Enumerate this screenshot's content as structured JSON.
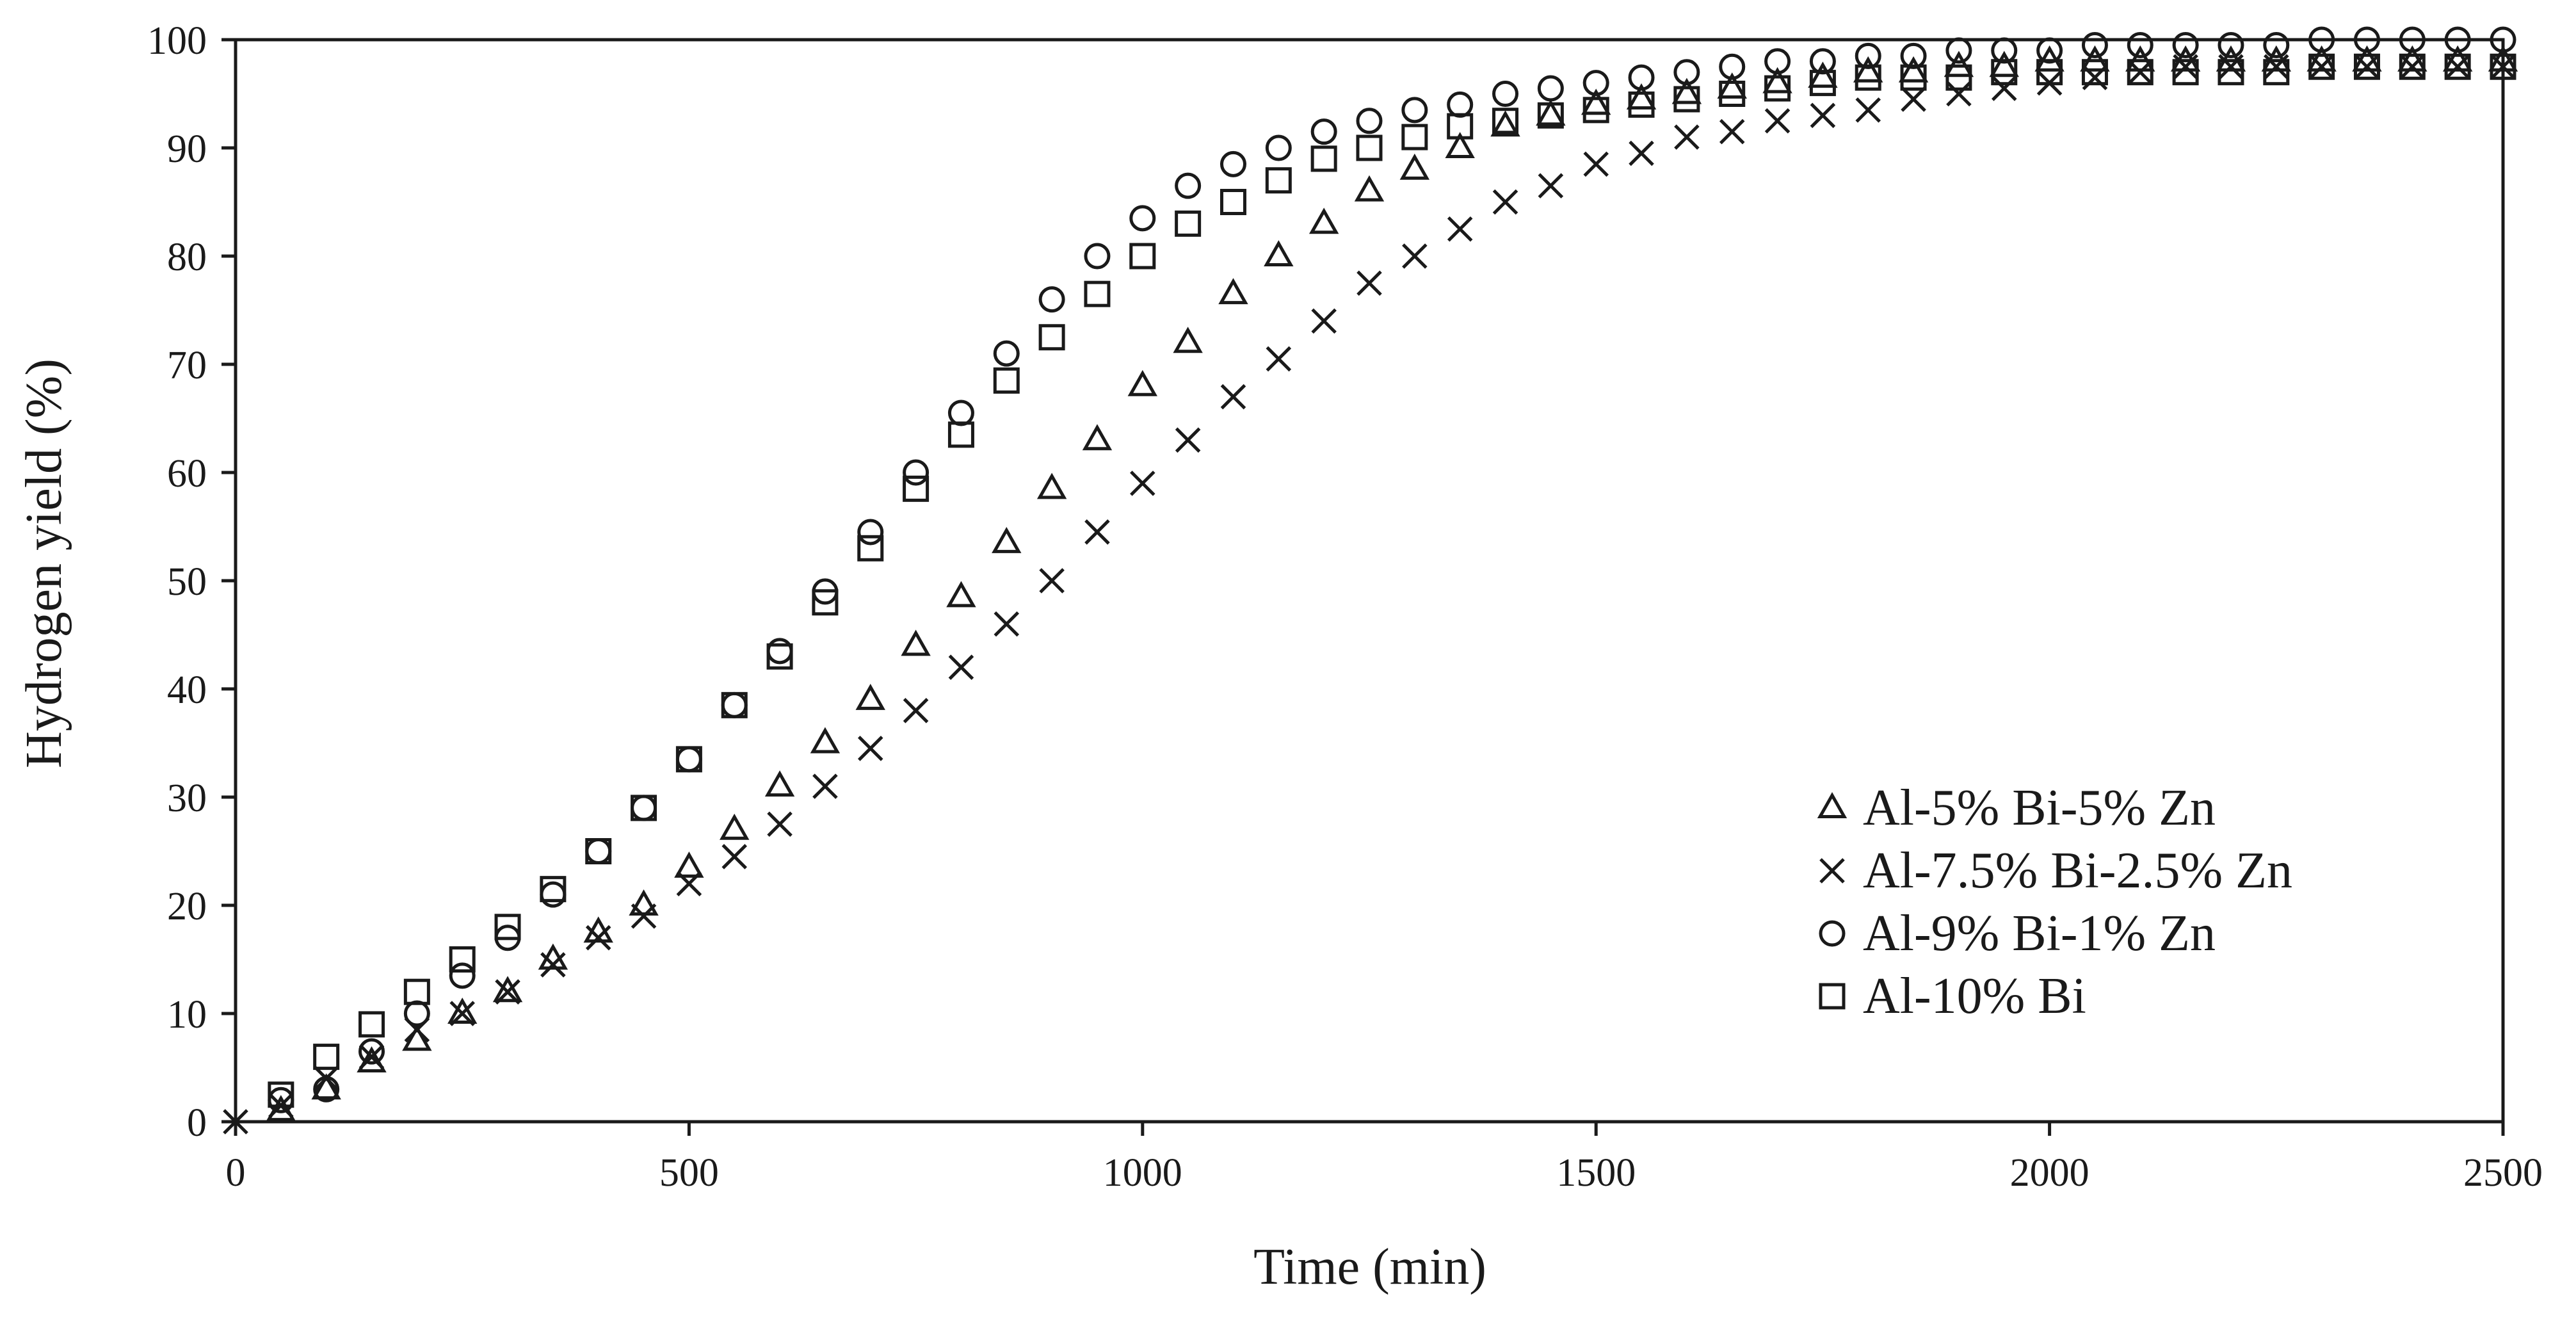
{
  "chart_data": {
    "type": "scatter",
    "title": "",
    "xlabel": "Time (min)",
    "ylabel": "Hydrogen yield (%)",
    "xlim": [
      0,
      2500
    ],
    "ylim": [
      0,
      100
    ],
    "xticks": [
      0,
      500,
      1000,
      1500,
      2000,
      2500
    ],
    "yticks": [
      0,
      10,
      20,
      30,
      40,
      50,
      60,
      70,
      80,
      90,
      100
    ],
    "grid": false,
    "legend_position": "bottom-right",
    "series": [
      {
        "name": "Al-5% Bi-5% Zn",
        "marker": "triangle",
        "x": [
          50,
          100,
          150,
          200,
          250,
          300,
          350,
          400,
          450,
          500,
          550,
          600,
          650,
          700,
          750,
          800,
          850,
          900,
          950,
          1000,
          1050,
          1100,
          1150,
          1200,
          1250,
          1300,
          1350,
          1400,
          1450,
          1500,
          1550,
          1600,
          1650,
          1700,
          1750,
          1800,
          1850,
          1900,
          1950,
          2000,
          2050,
          2100,
          2150,
          2200,
          2250,
          2300,
          2350,
          2400,
          2450,
          2500
        ],
        "y": [
          1,
          3,
          5.5,
          7.5,
          10,
          12,
          15,
          17.5,
          20,
          23.5,
          27,
          31,
          35,
          39,
          44,
          48.5,
          53.5,
          58.5,
          63,
          68,
          72,
          76.5,
          80,
          83,
          86,
          88,
          90,
          92,
          93,
          94,
          94.5,
          95,
          95.5,
          96,
          96.5,
          97,
          97,
          97.5,
          97.5,
          98,
          98,
          98,
          98,
          98,
          98,
          98,
          98,
          98,
          98,
          98
        ]
      },
      {
        "name": "Al-7.5% Bi-2.5% Zn",
        "marker": "cross",
        "x": [
          50,
          100,
          150,
          200,
          250,
          300,
          350,
          400,
          450,
          500,
          550,
          600,
          650,
          700,
          750,
          800,
          850,
          900,
          950,
          1000,
          1050,
          1100,
          1150,
          1200,
          1250,
          1300,
          1350,
          1400,
          1450,
          1500,
          1550,
          1600,
          1650,
          1700,
          1750,
          1800,
          1850,
          1900,
          1950,
          2000,
          2050,
          2100,
          2150,
          2200,
          2250,
          2300,
          2350,
          2400,
          2450,
          2500
        ],
        "y": [
          1.5,
          4,
          6,
          8.5,
          10,
          12,
          14.5,
          17,
          19,
          22,
          24.5,
          27.5,
          31,
          34.5,
          38,
          42,
          46,
          50,
          54.5,
          59,
          63,
          67,
          70.5,
          74,
          77.5,
          80,
          82.5,
          85,
          86.5,
          88.5,
          89.5,
          91,
          91.5,
          92.5,
          93,
          93.5,
          94.5,
          95,
          95.5,
          96,
          96.5,
          97,
          97.5,
          97.5,
          97.5,
          97.5,
          97.5,
          97.5,
          97.5,
          97.5
        ]
      },
      {
        "name": "Al-9% Bi-1% Zn",
        "marker": "circle",
        "x": [
          50,
          100,
          150,
          200,
          250,
          300,
          350,
          400,
          450,
          500,
          550,
          600,
          650,
          700,
          750,
          800,
          850,
          900,
          950,
          1000,
          1050,
          1100,
          1150,
          1200,
          1250,
          1300,
          1350,
          1400,
          1450,
          1500,
          1550,
          1600,
          1650,
          1700,
          1750,
          1800,
          1850,
          1900,
          1950,
          2000,
          2050,
          2100,
          2150,
          2200,
          2250,
          2300,
          2350,
          2400,
          2450,
          2500
        ],
        "y": [
          2,
          3,
          6.5,
          10,
          13.5,
          17,
          21,
          25,
          29,
          33.5,
          38.5,
          43.5,
          49,
          54.5,
          60,
          65.5,
          71,
          76,
          80,
          83.5,
          86.5,
          88.5,
          90,
          91.5,
          92.5,
          93.5,
          94,
          95,
          95.5,
          96,
          96.5,
          97,
          97.5,
          98,
          98,
          98.5,
          98.5,
          99,
          99,
          99,
          99.5,
          99.5,
          99.5,
          99.5,
          99.5,
          100,
          100,
          100,
          100,
          100
        ]
      },
      {
        "name": "Al-10% Bi",
        "marker": "square",
        "x": [
          50,
          100,
          150,
          200,
          250,
          300,
          350,
          400,
          450,
          500,
          550,
          600,
          650,
          700,
          750,
          800,
          850,
          900,
          950,
          1000,
          1050,
          1100,
          1150,
          1200,
          1250,
          1300,
          1350,
          1400,
          1450,
          1500,
          1550,
          1600,
          1650,
          1700,
          1750,
          1800,
          1850,
          1900,
          1950,
          2000,
          2050,
          2100,
          2150,
          2200,
          2250,
          2300,
          2350,
          2400,
          2450,
          2500
        ],
        "y": [
          2.5,
          6,
          9,
          12,
          15,
          18,
          21.5,
          25,
          29,
          33.5,
          38.5,
          43,
          48,
          53,
          58.5,
          63.5,
          68.5,
          72.5,
          76.5,
          80,
          83,
          85,
          87,
          89,
          90,
          91,
          92,
          92.5,
          93,
          93.5,
          94,
          94.5,
          95,
          95.5,
          96,
          96.5,
          96.5,
          96.5,
          97,
          97,
          97,
          97,
          97,
          97,
          97,
          97.5,
          97.5,
          97.5,
          97.5,
          97.5
        ]
      }
    ],
    "origin_point": {
      "x": 0,
      "y": 0,
      "marker": "cross"
    }
  }
}
